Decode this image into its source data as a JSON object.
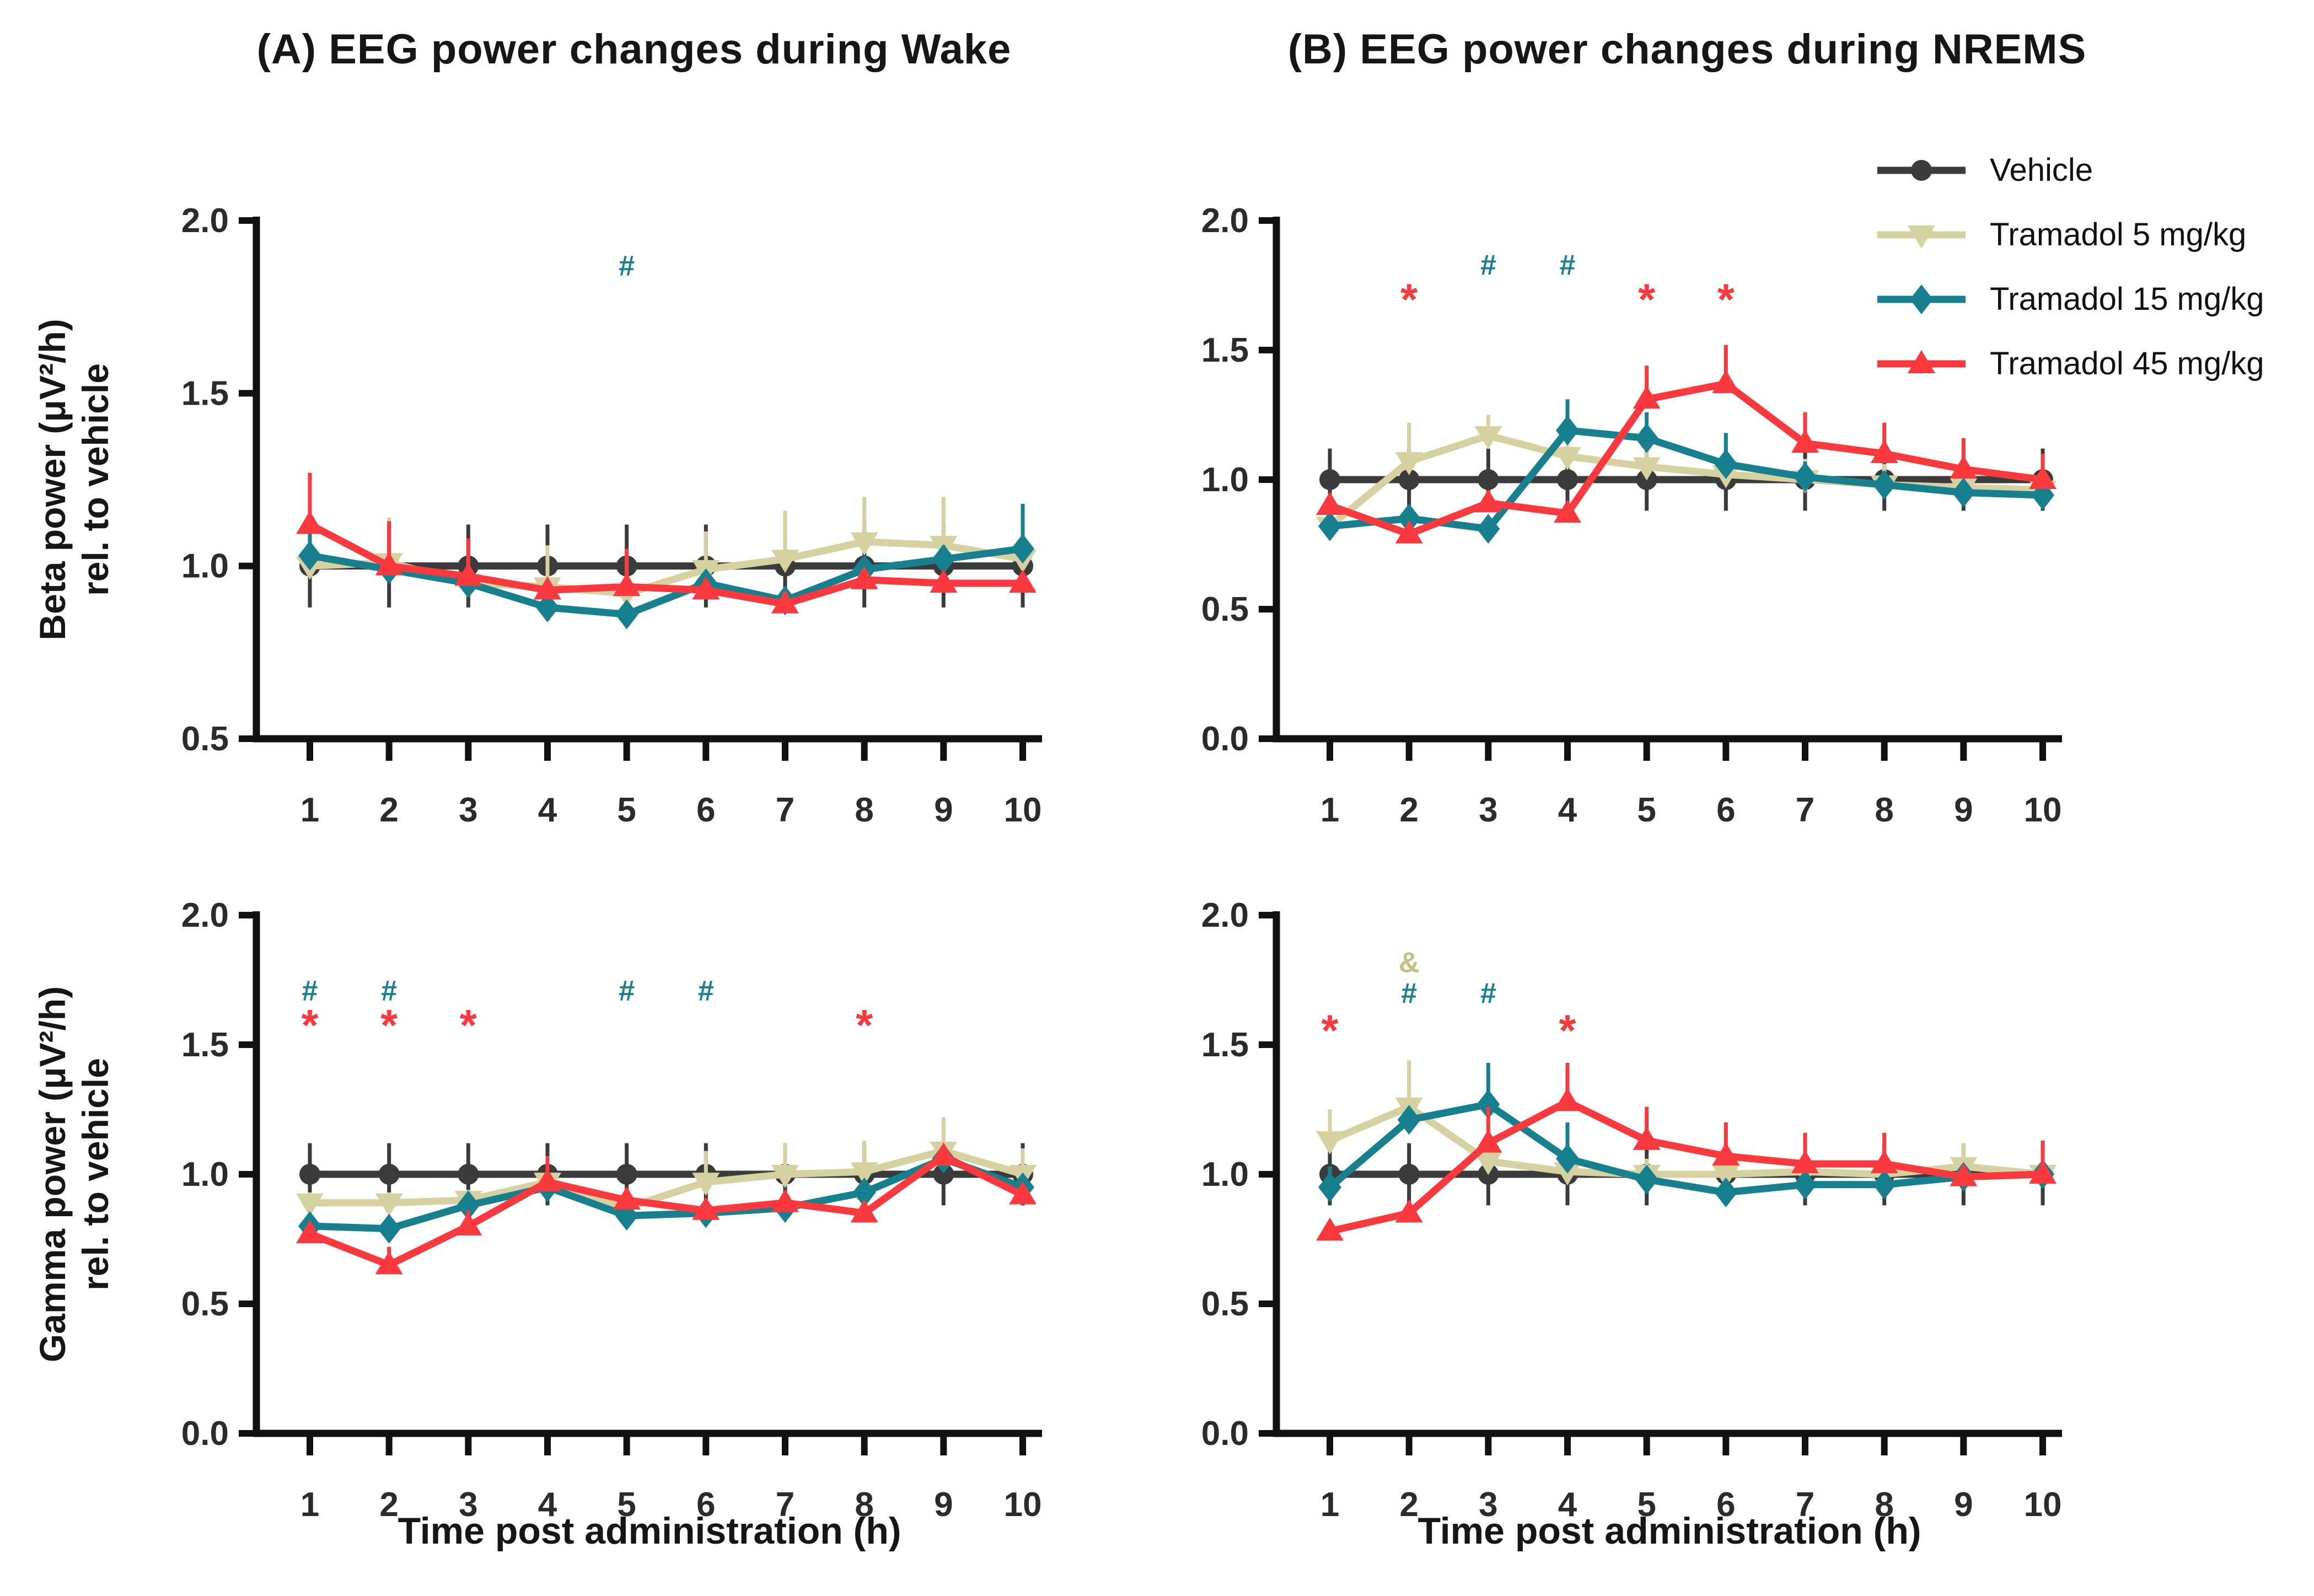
{
  "figure": {
    "panel_a_title": "(A) EEG power changes during Wake",
    "panel_b_title": "(B) EEG power changes during NREMS",
    "x_axis_title": "Time post administration (h)",
    "background_color": "#FFFFFF",
    "axis_color": "#111111",
    "tick_label_color": "#2B2B2B"
  },
  "legend": {
    "position": "top-right",
    "items": [
      {
        "label": "Vehicle",
        "color": "#3B3B3B",
        "marker": "circle"
      },
      {
        "label": "Tramadol 5 mg/kg",
        "color": "#D5D1A0",
        "marker": "triangle-down"
      },
      {
        "label": "Tramadol 15 mg/kg",
        "color": "#17808E",
        "marker": "diamond"
      },
      {
        "label": "Tramadol 45 mg/kg",
        "color": "#F9393E",
        "marker": "triangle-up"
      }
    ]
  },
  "chart_data": [
    {
      "id": "wake-beta",
      "type": "line",
      "position": "top-left",
      "ylabel_line1": "Beta power (μV²/h)",
      "ylabel_line2": "rel. to vehicle",
      "xlabel": "Time post administration (h)",
      "ylim": [
        0.5,
        2.0
      ],
      "yticks": [
        0.5,
        1.0,
        1.5,
        2.0
      ],
      "ytick_labels": [
        "0.5",
        "1.0",
        "1.5",
        "2.0"
      ],
      "x": [
        1,
        2,
        3,
        4,
        5,
        6,
        7,
        8,
        9,
        10
      ],
      "grid": false,
      "series": [
        {
          "name": "Vehicle",
          "color": "#3B3B3B",
          "marker": "circle",
          "values": [
            1.0,
            1.0,
            1.0,
            1.0,
            1.0,
            1.0,
            1.0,
            1.0,
            1.0,
            1.0
          ],
          "err_up": [
            0.12,
            0.12,
            0.12,
            0.12,
            0.12,
            0.12,
            0.12,
            0.12,
            0.12,
            0.12
          ],
          "err_down": [
            0.12,
            0.12,
            0.12,
            0.12,
            0.12,
            0.12,
            0.12,
            0.12,
            0.12,
            0.12
          ]
        },
        {
          "name": "Tramadol 5 mg/kg",
          "color": "#D5D1A0",
          "marker": "triangle-down",
          "values": [
            1.0,
            1.01,
            0.95,
            0.94,
            0.92,
            0.99,
            1.02,
            1.07,
            1.06,
            1.02
          ],
          "err_up": [
            0.08,
            0.13,
            0.1,
            0.12,
            0.12,
            0.11,
            0.14,
            0.13,
            0.14,
            0.15
          ],
          "err_down": [
            0,
            0,
            0,
            0,
            0,
            0,
            0,
            0,
            0,
            0
          ]
        },
        {
          "name": "Tramadol 15 mg/kg",
          "color": "#17808E",
          "marker": "diamond",
          "values": [
            1.03,
            0.99,
            0.95,
            0.88,
            0.86,
            0.95,
            0.9,
            0.99,
            1.02,
            1.05
          ],
          "err_up": [
            0.12,
            0.04,
            0.12,
            0.03,
            0.03,
            0.03,
            0.03,
            0.03,
            0.04,
            0.13
          ],
          "err_down": [
            0,
            0,
            0,
            0,
            0,
            0,
            0,
            0,
            0,
            0
          ]
        },
        {
          "name": "Tramadol 45 mg/kg",
          "color": "#F9393E",
          "marker": "triangle-up",
          "values": [
            1.12,
            1.0,
            0.97,
            0.93,
            0.94,
            0.93,
            0.89,
            0.96,
            0.95,
            0.95
          ],
          "err_up": [
            0.15,
            0.13,
            0.11,
            0.03,
            0.11,
            0.03,
            0.03,
            0.03,
            0.03,
            0.03
          ],
          "err_down": [
            0,
            0,
            0,
            0,
            0,
            0,
            0,
            0,
            0,
            0
          ]
        }
      ],
      "annotations": [
        {
          "x": 5,
          "y": 1.87,
          "symbol": "#",
          "color": "#17808E"
        }
      ]
    },
    {
      "id": "nrems-beta",
      "type": "line",
      "position": "top-right",
      "ylabel_line1": "",
      "ylabel_line2": "",
      "xlabel": "Time post administration (h)",
      "ylim": [
        0.0,
        2.0
      ],
      "yticks": [
        0.0,
        0.5,
        1.0,
        1.5,
        2.0
      ],
      "ytick_labels": [
        "0.0",
        "0.5",
        "1.0",
        "1.5",
        "2.0"
      ],
      "x": [
        1,
        2,
        3,
        4,
        5,
        6,
        7,
        8,
        9,
        10
      ],
      "grid": false,
      "series": [
        {
          "name": "Vehicle",
          "color": "#3B3B3B",
          "marker": "circle",
          "values": [
            1.0,
            1.0,
            1.0,
            1.0,
            1.0,
            1.0,
            1.0,
            1.0,
            1.0,
            1.0
          ],
          "err_up": [
            0.12,
            0.12,
            0.12,
            0.12,
            0.12,
            0.12,
            0.12,
            0.12,
            0.12,
            0.12
          ],
          "err_down": [
            0.12,
            0.12,
            0.12,
            0.12,
            0.12,
            0.12,
            0.12,
            0.12,
            0.12,
            0.12
          ]
        },
        {
          "name": "Tramadol 5 mg/kg",
          "color": "#D5D1A0",
          "marker": "triangle-down",
          "values": [
            0.82,
            1.07,
            1.17,
            1.09,
            1.05,
            1.02,
            1.0,
            0.98,
            0.97,
            0.96
          ],
          "err_up": [
            0.04,
            0.15,
            0.08,
            0.06,
            0.06,
            0.07,
            0.08,
            0.08,
            0.08,
            0.08
          ],
          "err_down": [
            0,
            0,
            0,
            0,
            0,
            0,
            0,
            0,
            0,
            0
          ]
        },
        {
          "name": "Tramadol 15 mg/kg",
          "color": "#17808E",
          "marker": "diamond",
          "values": [
            0.82,
            0.85,
            0.81,
            1.19,
            1.16,
            1.06,
            1.01,
            0.98,
            0.95,
            0.94
          ],
          "err_up": [
            0.03,
            0.04,
            0.04,
            0.12,
            0.1,
            0.12,
            0.06,
            0.05,
            0.05,
            0.05
          ],
          "err_down": [
            0,
            0,
            0,
            0,
            0,
            0,
            0,
            0,
            0,
            0
          ]
        },
        {
          "name": "Tramadol 45 mg/kg",
          "color": "#F9393E",
          "marker": "triangle-up",
          "values": [
            0.9,
            0.79,
            0.91,
            0.87,
            1.31,
            1.37,
            1.14,
            1.1,
            1.04,
            1.0
          ],
          "err_up": [
            0.04,
            0.03,
            0.04,
            0.03,
            0.13,
            0.15,
            0.12,
            0.12,
            0.12,
            0.1
          ],
          "err_down": [
            0,
            0,
            0,
            0,
            0,
            0,
            0,
            0,
            0,
            0
          ]
        }
      ],
      "annotations": [
        {
          "x": 2,
          "y": 1.72,
          "symbol": "*",
          "color": "#F9393E"
        },
        {
          "x": 3,
          "y": 1.83,
          "symbol": "#",
          "color": "#17808E"
        },
        {
          "x": 4,
          "y": 1.83,
          "symbol": "#",
          "color": "#17808E"
        },
        {
          "x": 5,
          "y": 1.72,
          "symbol": "*",
          "color": "#F9393E"
        },
        {
          "x": 6,
          "y": 1.72,
          "symbol": "*",
          "color": "#F9393E"
        }
      ]
    },
    {
      "id": "wake-gamma",
      "type": "line",
      "position": "bottom-left",
      "ylabel_line1": "Gamma power (μV²/h)",
      "ylabel_line2": "rel. to vehicle",
      "xlabel": "Time post administration (h)",
      "ylim": [
        0.0,
        2.0
      ],
      "yticks": [
        0.0,
        0.5,
        1.0,
        1.5,
        2.0
      ],
      "ytick_labels": [
        "0.0",
        "0.5",
        "1.0",
        "1.5",
        "2.0"
      ],
      "x": [
        1,
        2,
        3,
        4,
        5,
        6,
        7,
        8,
        9,
        10
      ],
      "grid": false,
      "series": [
        {
          "name": "Vehicle",
          "color": "#3B3B3B",
          "marker": "circle",
          "values": [
            1.0,
            1.0,
            1.0,
            1.0,
            1.0,
            1.0,
            1.0,
            1.0,
            1.0,
            1.0
          ],
          "err_up": [
            0.12,
            0.12,
            0.12,
            0.12,
            0.12,
            0.12,
            0.12,
            0.12,
            0.12,
            0.12
          ],
          "err_down": [
            0.12,
            0.12,
            0.12,
            0.12,
            0.12,
            0.12,
            0.12,
            0.12,
            0.12,
            0.12
          ]
        },
        {
          "name": "Tramadol 5 mg/kg",
          "color": "#D5D1A0",
          "marker": "triangle-down",
          "values": [
            0.89,
            0.89,
            0.9,
            0.97,
            0.87,
            0.97,
            1.0,
            1.01,
            1.09,
            1.0
          ],
          "err_up": [
            0.04,
            0.04,
            0.04,
            0.1,
            0.04,
            0.12,
            0.12,
            0.12,
            0.13,
            0.1
          ],
          "err_down": [
            0,
            0,
            0,
            0,
            0,
            0,
            0,
            0,
            0,
            0
          ]
        },
        {
          "name": "Tramadol 15 mg/kg",
          "color": "#17808E",
          "marker": "diamond",
          "values": [
            0.8,
            0.79,
            0.88,
            0.95,
            0.84,
            0.85,
            0.87,
            0.93,
            1.06,
            0.95
          ],
          "err_up": [
            0.04,
            0.04,
            0.04,
            0.04,
            0.03,
            0.03,
            0.03,
            0.03,
            0.04,
            0.04
          ],
          "err_down": [
            0,
            0,
            0,
            0,
            0,
            0,
            0,
            0,
            0,
            0
          ]
        },
        {
          "name": "Tramadol 45 mg/kg",
          "color": "#F9393E",
          "marker": "triangle-up",
          "values": [
            0.77,
            0.65,
            0.8,
            0.97,
            0.9,
            0.86,
            0.89,
            0.85,
            1.07,
            0.92
          ],
          "err_up": [
            0.04,
            0.07,
            0.06,
            0.1,
            0.04,
            0.04,
            0.04,
            0.04,
            0.04,
            0.04
          ],
          "err_down": [
            0,
            0,
            0,
            0,
            0,
            0,
            0,
            0,
            0,
            0
          ]
        }
      ],
      "annotations": [
        {
          "x": 1,
          "y": 1.71,
          "symbol": "#",
          "color": "#17808E"
        },
        {
          "x": 2,
          "y": 1.71,
          "symbol": "#",
          "color": "#17808E"
        },
        {
          "x": 5,
          "y": 1.71,
          "symbol": "#",
          "color": "#17808E"
        },
        {
          "x": 6,
          "y": 1.71,
          "symbol": "#",
          "color": "#17808E"
        },
        {
          "x": 1,
          "y": 1.6,
          "symbol": "*",
          "color": "#F9393E"
        },
        {
          "x": 2,
          "y": 1.6,
          "symbol": "*",
          "color": "#F9393E"
        },
        {
          "x": 3,
          "y": 1.6,
          "symbol": "*",
          "color": "#F9393E"
        },
        {
          "x": 8,
          "y": 1.6,
          "symbol": "*",
          "color": "#F9393E"
        }
      ]
    },
    {
      "id": "nrems-gamma",
      "type": "line",
      "position": "bottom-right",
      "ylabel_line1": "",
      "ylabel_line2": "",
      "xlabel": "Time post administration (h)",
      "ylim": [
        0.0,
        2.0
      ],
      "yticks": [
        0.0,
        0.5,
        1.0,
        1.5,
        2.0
      ],
      "ytick_labels": [
        "0.0",
        "0.5",
        "1.0",
        "1.5",
        "2.0"
      ],
      "x": [
        1,
        2,
        3,
        4,
        5,
        6,
        7,
        8,
        9,
        10
      ],
      "grid": false,
      "series": [
        {
          "name": "Vehicle",
          "color": "#3B3B3B",
          "marker": "circle",
          "values": [
            1.0,
            1.0,
            1.0,
            1.0,
            1.0,
            1.0,
            1.0,
            1.0,
            1.0,
            1.0
          ],
          "err_up": [
            0.12,
            0.12,
            0.12,
            0.12,
            0.12,
            0.12,
            0.12,
            0.12,
            0.12,
            0.12
          ],
          "err_down": [
            0.12,
            0.12,
            0.12,
            0.12,
            0.12,
            0.12,
            0.12,
            0.12,
            0.12,
            0.12
          ]
        },
        {
          "name": "Tramadol 5 mg/kg",
          "color": "#D5D1A0",
          "marker": "triangle-down",
          "values": [
            1.13,
            1.26,
            1.05,
            1.01,
            1.0,
            1.0,
            1.01,
            1.0,
            1.03,
            1.0
          ],
          "err_up": [
            0.12,
            0.18,
            0.08,
            0.07,
            0.06,
            0.06,
            0.1,
            0.08,
            0.09,
            0.1
          ],
          "err_down": [
            0,
            0,
            0,
            0,
            0,
            0,
            0,
            0,
            0,
            0
          ]
        },
        {
          "name": "Tramadol 15 mg/kg",
          "color": "#17808E",
          "marker": "diamond",
          "values": [
            0.95,
            1.21,
            1.27,
            1.06,
            0.98,
            0.93,
            0.96,
            0.96,
            0.99,
            1.0
          ],
          "err_up": [
            0.08,
            0.04,
            0.16,
            0.14,
            0.04,
            0.04,
            0.04,
            0.04,
            0.04,
            0.12
          ],
          "err_down": [
            0,
            0,
            0,
            0,
            0,
            0,
            0,
            0,
            0,
            0
          ]
        },
        {
          "name": "Tramadol 45 mg/kg",
          "color": "#F9393E",
          "marker": "triangle-up",
          "values": [
            0.78,
            0.85,
            1.12,
            1.28,
            1.13,
            1.07,
            1.04,
            1.04,
            0.99,
            1.0
          ],
          "err_up": [
            0.04,
            0.04,
            0.14,
            0.15,
            0.13,
            0.13,
            0.12,
            0.12,
            0.04,
            0.13
          ],
          "err_down": [
            0,
            0,
            0,
            0,
            0,
            0,
            0,
            0,
            0,
            0
          ]
        }
      ],
      "annotations": [
        {
          "x": 1,
          "y": 1.58,
          "symbol": "*",
          "color": "#F9393E"
        },
        {
          "x": 2,
          "y": 1.82,
          "symbol": "&",
          "color": "#C5C182"
        },
        {
          "x": 2,
          "y": 1.7,
          "symbol": "#",
          "color": "#17808E"
        },
        {
          "x": 3,
          "y": 1.7,
          "symbol": "#",
          "color": "#17808E"
        },
        {
          "x": 4,
          "y": 1.58,
          "symbol": "*",
          "color": "#F9393E"
        }
      ]
    }
  ]
}
